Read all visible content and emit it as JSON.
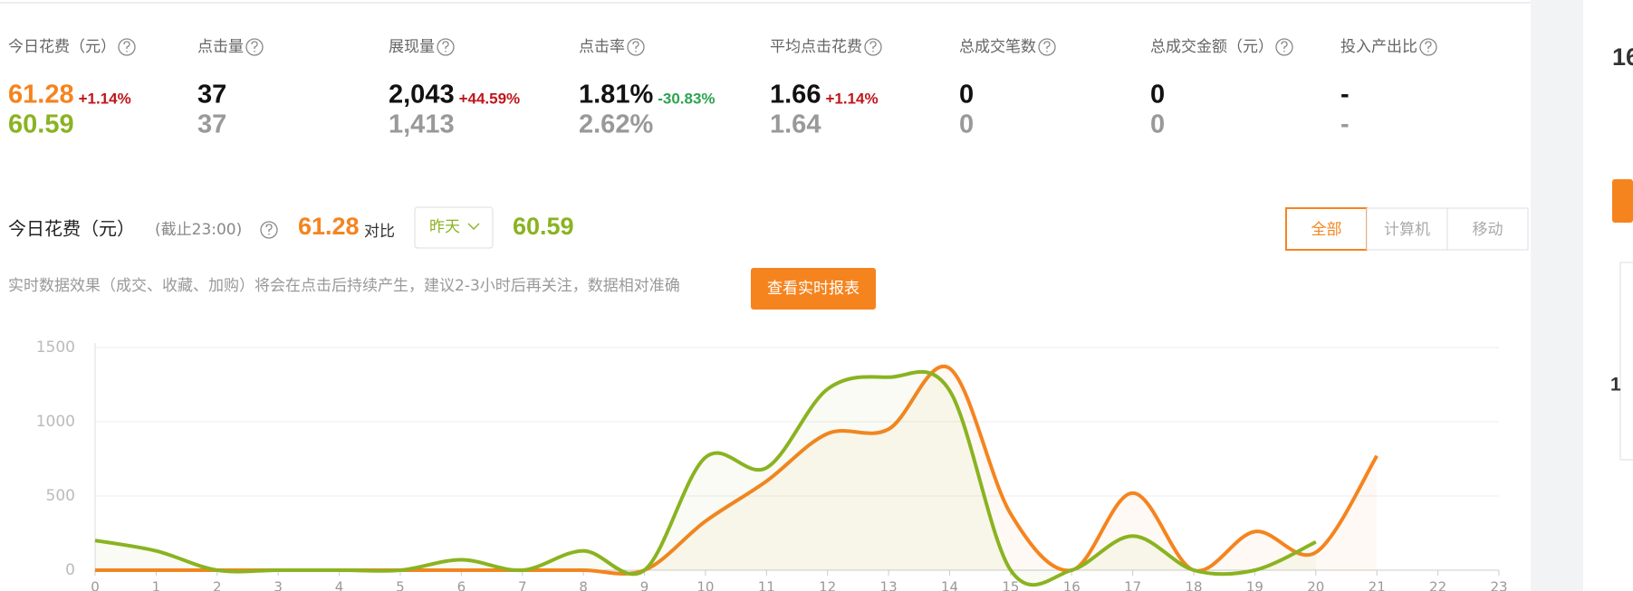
{
  "metrics": [
    {
      "label": "今日花费（元）",
      "today": "61.28",
      "change": "+1.14%",
      "yesterday": "60.59"
    },
    {
      "label": "点击量",
      "today": "37",
      "yesterday": "37"
    },
    {
      "label": "展现量",
      "today": "2,043",
      "change": "+44.59%",
      "yesterday": "1,413"
    },
    {
      "label": "点击率",
      "today": "1.81%",
      "change": "-30.83%",
      "yesterday": "2.62%"
    },
    {
      "label": "平均点击花费",
      "today": "1.66",
      "change": "+1.14%",
      "yesterday": "1.64"
    },
    {
      "label": "总成交笔数",
      "today": "0",
      "yesterday": "0"
    },
    {
      "label": "总成交金额（元）",
      "today": "0",
      "yesterday": "0"
    },
    {
      "label": "投入产出比",
      "today": "-",
      "yesterday": "-"
    }
  ],
  "summary": {
    "title": "今日花费（元）",
    "cutoff": "(截止23:00)",
    "today": "61.28",
    "compare": "对比",
    "period": "昨天",
    "yesterday": "60.59"
  },
  "tabs": [
    "全部",
    "计算机",
    "移动"
  ],
  "notice": "实时数据效果（成交、收藏、加购）将会在点击后持续产生，建议2-3小时后再关注，数据相对准确",
  "button": "查看实时报表",
  "side": {
    "top": "16",
    "mid": "1"
  },
  "chart_data": {
    "type": "line",
    "x": [
      0,
      1,
      2,
      3,
      4,
      5,
      6,
      7,
      8,
      9,
      10,
      11,
      12,
      13,
      14,
      15,
      16,
      17,
      18,
      19,
      20,
      21,
      22,
      23
    ],
    "series": [
      {
        "color": "#f5841f",
        "values": [
          0,
          0,
          0,
          0,
          0,
          0,
          0,
          0,
          0,
          0,
          330,
          600,
          920,
          950,
          1360,
          380,
          0,
          520,
          0,
          260,
          120,
          770,
          null,
          null
        ]
      },
      {
        "color": "#8ab321",
        "values": [
          200,
          130,
          0,
          0,
          0,
          0,
          70,
          0,
          130,
          0,
          760,
          690,
          1220,
          1300,
          1210,
          0,
          0,
          230,
          0,
          0,
          190,
          null,
          null,
          null
        ]
      }
    ],
    "xlim": [
      0,
      23
    ],
    "xticks": [
      0,
      1,
      2,
      3,
      4,
      5,
      6,
      7,
      8,
      9,
      10,
      11,
      12,
      13,
      14,
      15,
      16,
      17,
      18,
      19,
      20,
      21,
      22,
      23
    ],
    "ylim": [
      0,
      1500
    ],
    "yticks": [
      0,
      500,
      1000,
      1500
    ],
    "grid": true
  }
}
